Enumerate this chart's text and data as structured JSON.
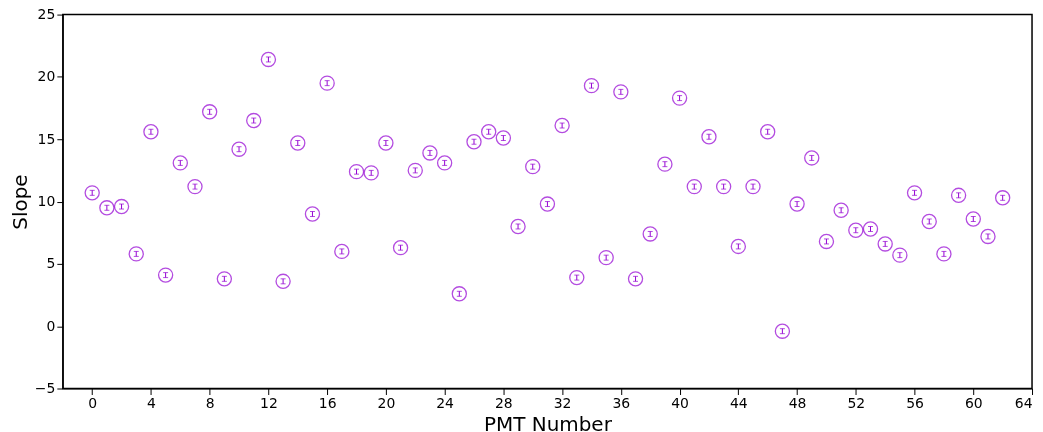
{
  "chart_data": {
    "type": "scatter",
    "xlabel": "PMT Number",
    "ylabel": "Slope",
    "x": [
      0,
      1,
      2,
      3,
      4,
      5,
      6,
      7,
      8,
      9,
      10,
      11,
      12,
      13,
      14,
      15,
      16,
      17,
      18,
      19,
      20,
      21,
      22,
      23,
      24,
      25,
      26,
      27,
      28,
      29,
      30,
      31,
      32,
      33,
      34,
      35,
      36,
      37,
      38,
      39,
      40,
      41,
      42,
      43,
      44,
      45,
      46,
      47,
      48,
      49,
      50,
      51,
      52,
      53,
      54,
      55,
      56,
      57,
      58,
      59,
      60,
      61,
      62
    ],
    "series": [
      {
        "color": "#9400d3",
        "values": [
          10.7,
          9.5,
          9.6,
          5.8,
          15.6,
          4.1,
          13.1,
          11.2,
          17.2,
          3.8,
          14.2,
          16.5,
          21.4,
          3.6,
          14.7,
          9.0,
          19.5,
          6.0,
          12.4,
          12.3,
          14.7,
          6.3,
          12.5,
          13.9,
          13.1,
          2.6,
          14.8,
          15.6,
          15.1,
          8.0,
          12.8,
          9.8,
          16.1,
          3.9,
          19.3,
          5.5,
          18.8,
          3.8,
          7.4,
          13.0,
          18.3,
          11.2,
          15.2,
          11.2,
          6.4,
          11.2,
          15.6,
          -0.4,
          9.8,
          13.5,
          6.8,
          9.3,
          7.7,
          7.8,
          6.6,
          5.7,
          10.7,
          8.4,
          5.8,
          10.5,
          8.6,
          7.2,
          10.3
        ],
        "errors": [
          0.2,
          0.2,
          0.2,
          0.2,
          0.2,
          0.2,
          0.2,
          0.2,
          0.2,
          0.2,
          0.2,
          0.2,
          0.2,
          0.2,
          0.2,
          0.2,
          0.2,
          0.2,
          0.2,
          0.2,
          0.2,
          0.2,
          0.2,
          0.2,
          0.2,
          0.2,
          0.2,
          0.2,
          0.2,
          0.2,
          0.2,
          0.2,
          0.2,
          0.2,
          0.2,
          0.2,
          0.2,
          0.2,
          0.2,
          0.2,
          0.2,
          0.2,
          0.2,
          0.2,
          0.2,
          0.2,
          0.2,
          0.2,
          0.2,
          0.2,
          0.2,
          0.2,
          0.2,
          0.2,
          0.2,
          0.2,
          0.2,
          0.2,
          0.2,
          0.2,
          0.2,
          0.2,
          0.2
        ]
      }
    ],
    "marker": "circle",
    "grid": false,
    "xlim": [
      -2,
      64
    ],
    "xticks": [
      0,
      4,
      8,
      12,
      16,
      20,
      24,
      28,
      32,
      36,
      40,
      44,
      48,
      52,
      56,
      60,
      64
    ],
    "ylim": [
      -5,
      25
    ],
    "yticks": [
      -5,
      0,
      5,
      10,
      15,
      20,
      25
    ]
  }
}
